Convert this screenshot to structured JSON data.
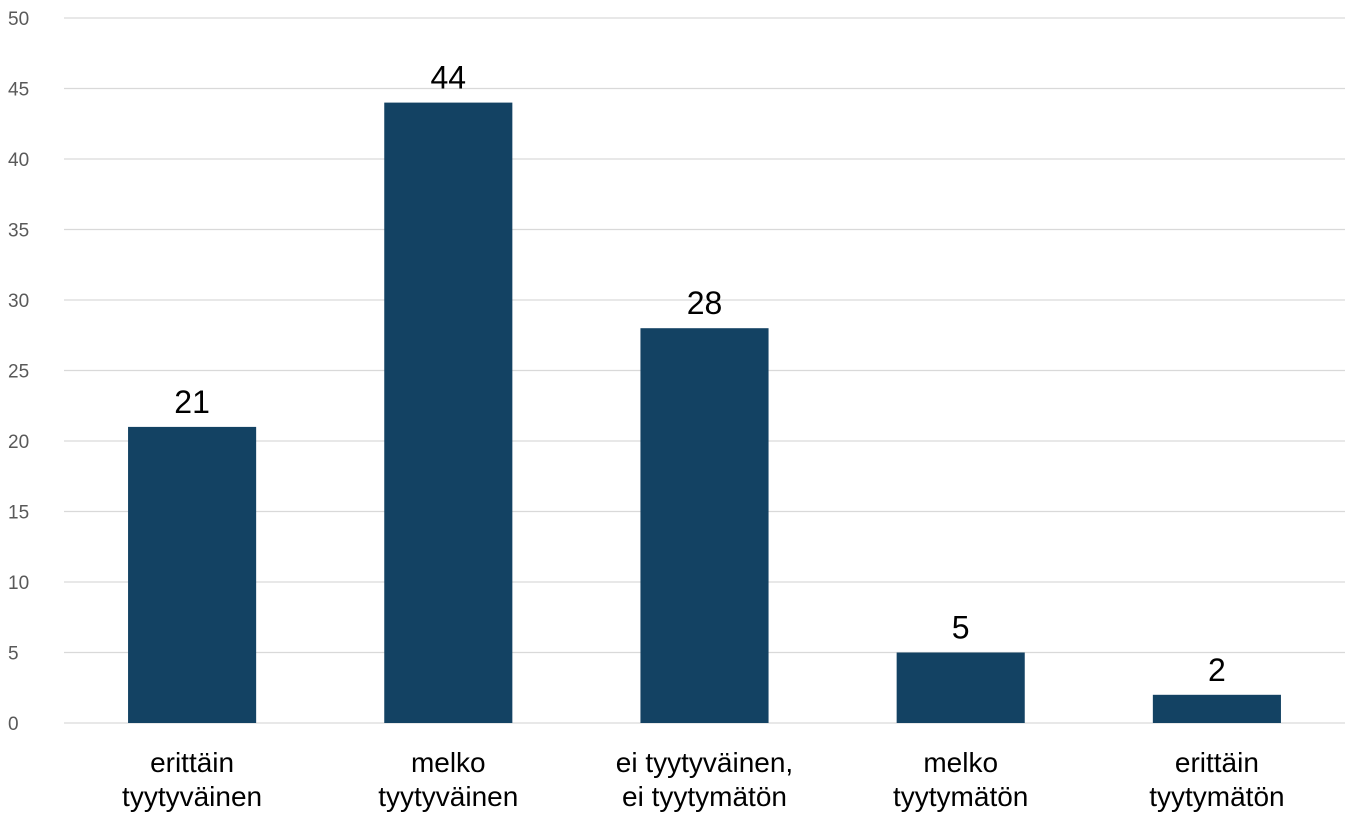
{
  "chart_data": {
    "type": "bar",
    "categories": [
      [
        "erittäin",
        "tyytyväinen"
      ],
      [
        "melko",
        "tyytyväinen"
      ],
      [
        "ei tyytyväinen,",
        "ei tyytymätön"
      ],
      [
        "melko",
        "tyytymätön"
      ],
      [
        "erittäin",
        "tyytymätön"
      ]
    ],
    "values": [
      21,
      44,
      28,
      5,
      2
    ],
    "data_labels": [
      "21",
      "44",
      "28",
      "5",
      "2"
    ],
    "title": "",
    "xlabel": "",
    "ylabel": "",
    "ylim": [
      0,
      50
    ],
    "yticks": [
      0,
      5,
      10,
      15,
      20,
      25,
      30,
      35,
      40,
      45,
      50
    ],
    "ytick_labels": [
      "0",
      "5",
      "10",
      "15",
      "20",
      "25",
      "30",
      "35",
      "40",
      "45",
      "50"
    ],
    "grid": true,
    "legend": "none",
    "bar_color": "#134263"
  }
}
